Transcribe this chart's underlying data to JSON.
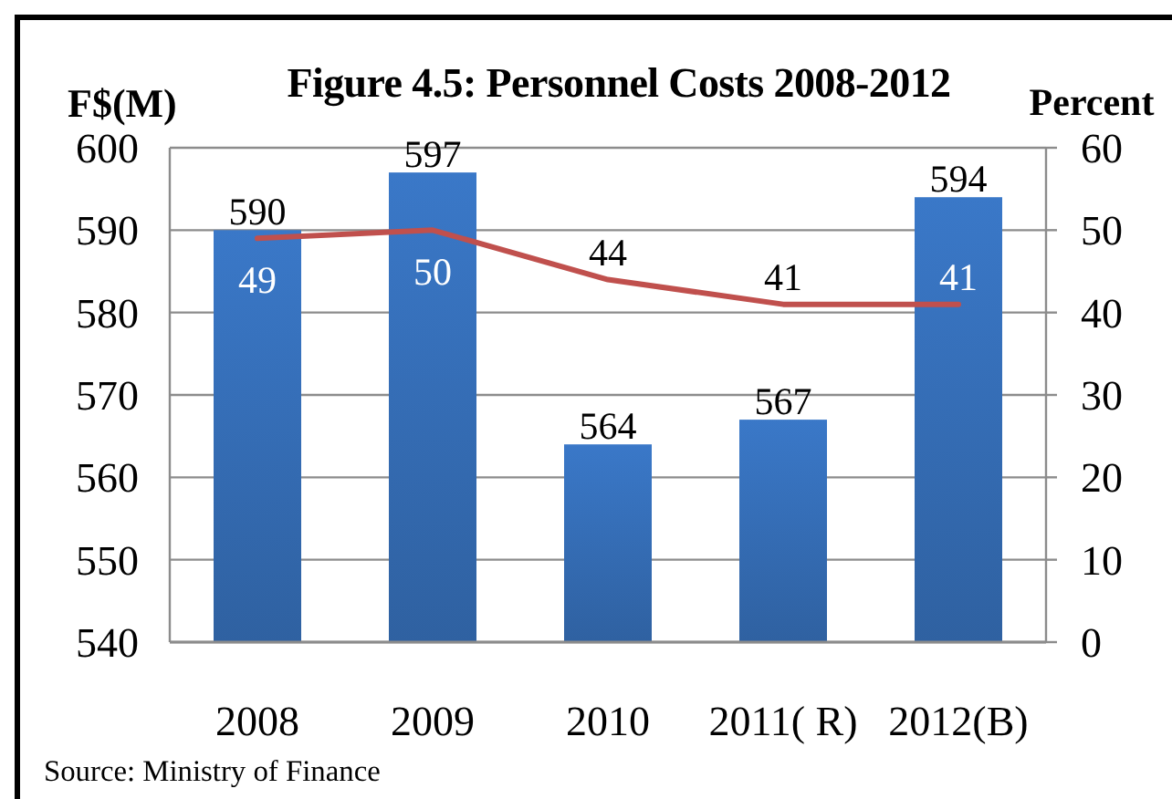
{
  "chart_data": {
    "type": "bar",
    "title": "Figure 4.5: Personnel Costs 2008-2012",
    "ylabel": "F$(M)",
    "y2label": "Percent",
    "categories": [
      "2008",
      "2009",
      "2010",
      "2011( R)",
      "2012(B)"
    ],
    "series": [
      {
        "color": "#3a78c8",
        "values": [
          590,
          597,
          564,
          567,
          594
        ]
      },
      {
        "type": "line",
        "axis": "y2",
        "color": "#c0504d",
        "values": [
          49,
          50,
          44,
          41,
          41
        ]
      }
    ],
    "ylim": [
      540,
      600
    ],
    "yticks": [
      540,
      550,
      560,
      570,
      580,
      590,
      600
    ],
    "y2lim": [
      0,
      60
    ],
    "y2ticks": [
      0,
      10,
      20,
      30,
      40,
      50,
      60
    ],
    "grid": "y",
    "data_labels": true,
    "annotations": [
      "Source: Ministry of Finance"
    ]
  }
}
